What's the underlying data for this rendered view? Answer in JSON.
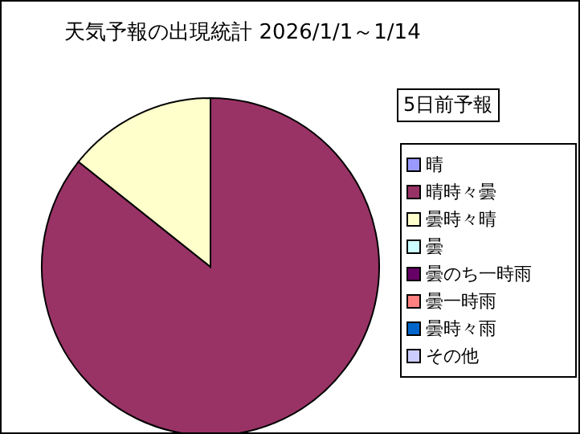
{
  "chart_data": {
    "type": "pie",
    "title": "天気予報の出現統計 2026/1/1～1/14",
    "legend_title": "5日前予報",
    "categories": [
      "晴",
      "晴時々曇",
      "曇時々晴",
      "曇",
      "曇のち一時雨",
      "曇一時雨",
      "曇時々雨",
      "その他"
    ],
    "values": [
      0,
      85.7,
      14.3,
      0,
      0,
      0,
      0,
      0
    ],
    "colors": [
      "#9999ff",
      "#993366",
      "#ffffcc",
      "#ccffff",
      "#660066",
      "#ff8080",
      "#0066cc",
      "#ccccff"
    ],
    "legend": "right"
  }
}
